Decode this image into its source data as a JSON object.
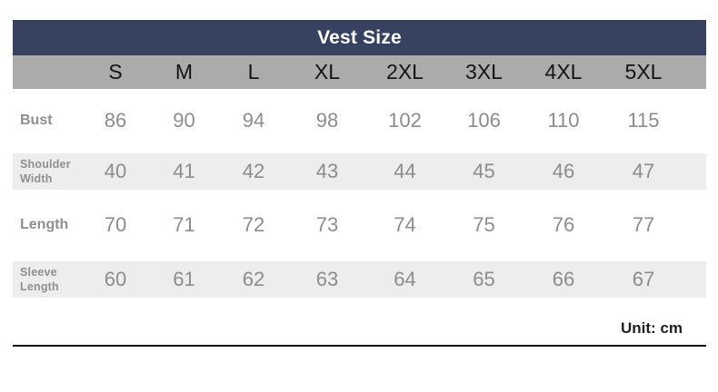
{
  "chart_data": {
    "type": "table",
    "title": "Vest Size",
    "columns": [
      "",
      "S",
      "M",
      "L",
      "XL",
      "2XL",
      "3XL",
      "4XL",
      "5XL"
    ],
    "size_headers": {
      "0": "S",
      "1": "M",
      "2": "L",
      "3": "XL",
      "4": "2XL",
      "5": "3XL",
      "6": "4XL",
      "7": "5XL"
    },
    "rows": [
      {
        "label": "Bust",
        "values": [
          "86",
          "90",
          "94",
          "98",
          "102",
          "106",
          "110",
          "115"
        ]
      },
      {
        "label": "Shoulder Width",
        "values": [
          "40",
          "41",
          "42",
          "43",
          "44",
          "45",
          "46",
          "47"
        ]
      },
      {
        "label": "Length",
        "values": [
          "70",
          "71",
          "72",
          "73",
          "74",
          "75",
          "76",
          "77"
        ]
      },
      {
        "label": "Sleeve Length",
        "values": [
          "60",
          "61",
          "62",
          "63",
          "64",
          "65",
          "66",
          "67"
        ]
      }
    ],
    "footnote": "Unit: cm",
    "layout": {
      "legend": "none",
      "grid": "off",
      "row_striping": "alternate"
    }
  },
  "colors": {
    "title_bar_bg": "#364260",
    "title_text": "#FFFFFF",
    "size_row_bg": "#ABABAB",
    "size_row_text": "#141414",
    "stripe_bg": "#EDEDED",
    "data_text": "#8C8C8C",
    "label_text": "#8F8F8F",
    "unit_text": "#1F1F1F",
    "divider": "#101010"
  }
}
